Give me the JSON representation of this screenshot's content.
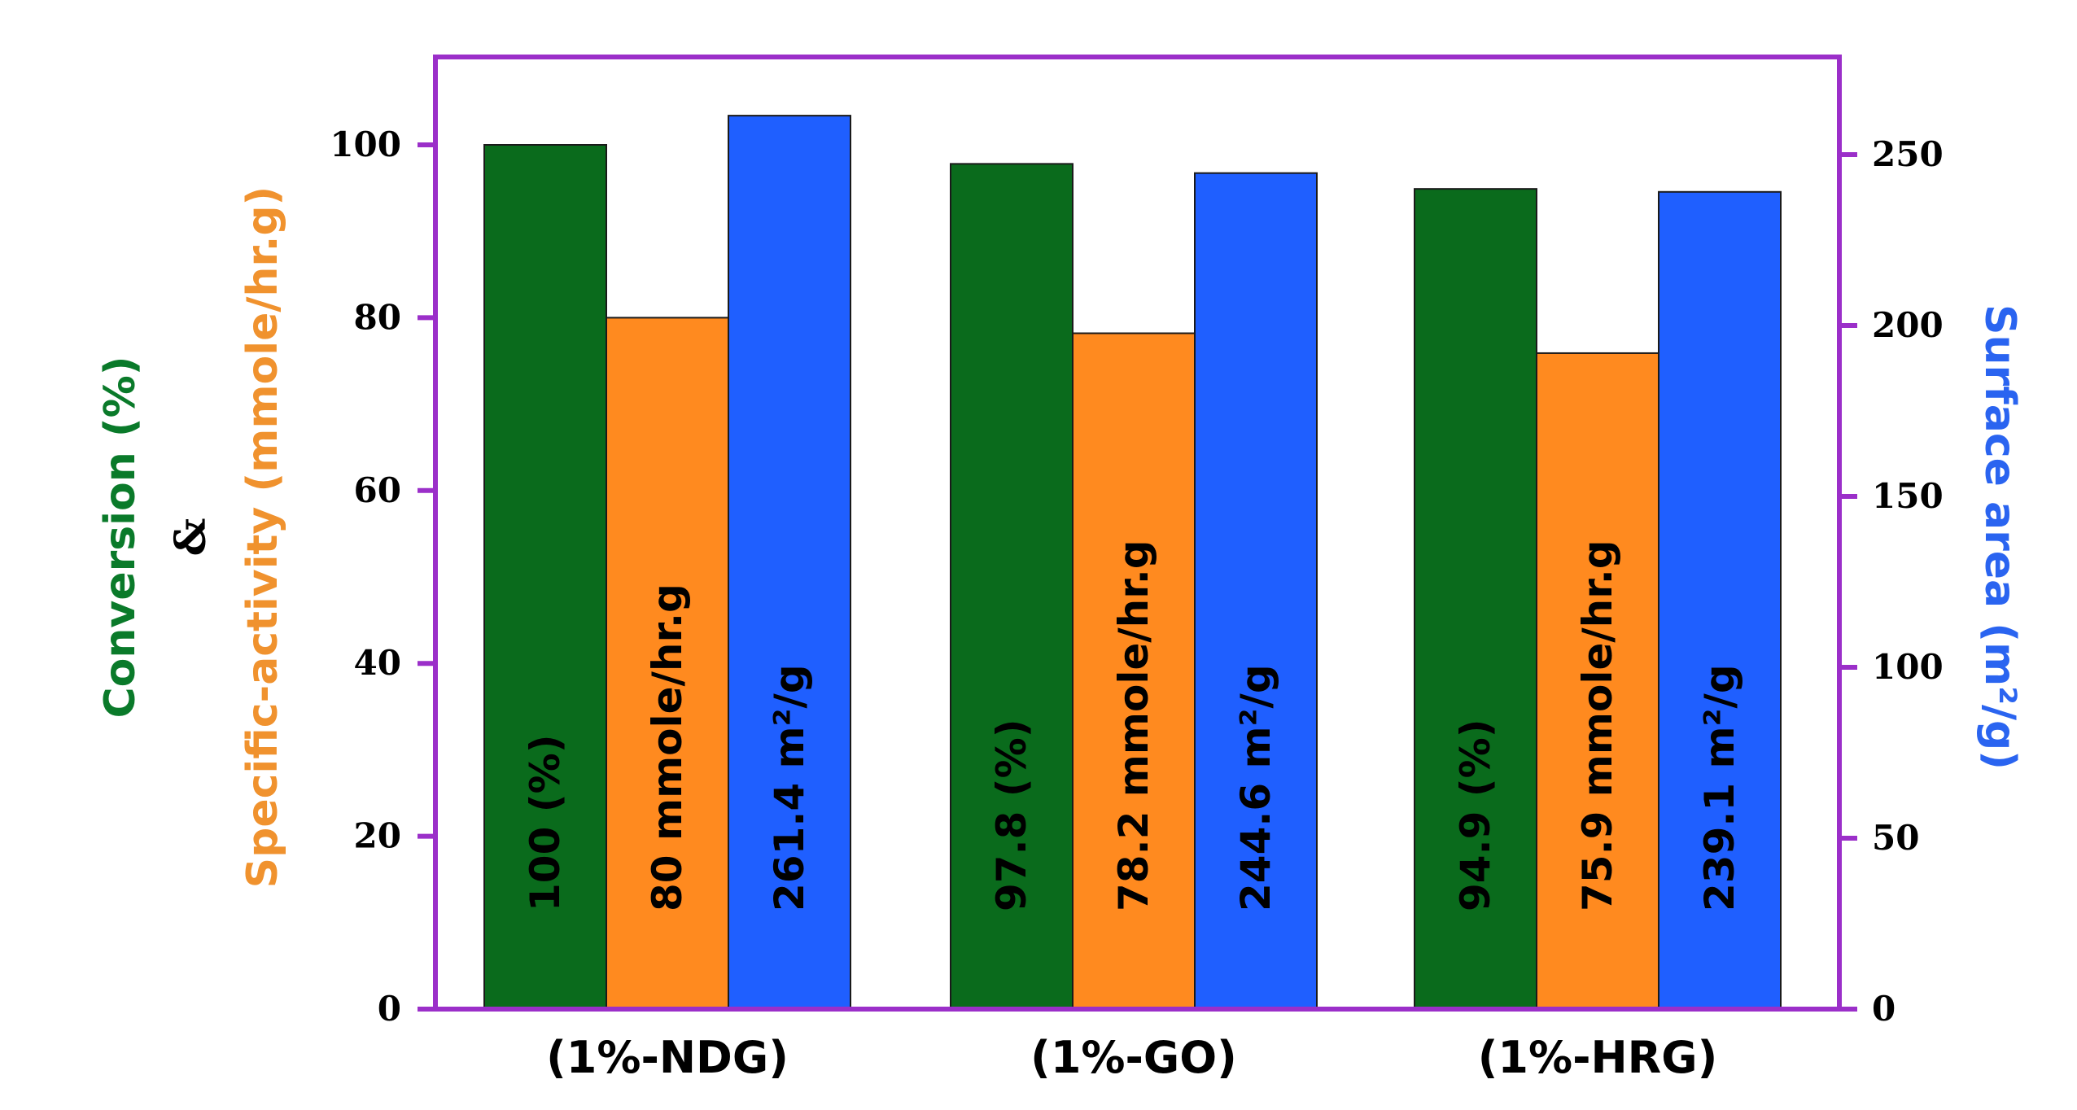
{
  "chart_data": {
    "type": "bar",
    "categories": [
      "(1%-NDG)",
      "(1%-GO)",
      "(1%-HRG)"
    ],
    "series": [
      {
        "key": "conversion",
        "axis": "left",
        "values": [
          100,
          97.8,
          94.9
        ],
        "color": "#0a6b1c",
        "labels": [
          "100 (%)",
          "97.8 (%)",
          "94.9 (%)"
        ]
      },
      {
        "key": "activity",
        "axis": "left",
        "values": [
          80,
          78.2,
          75.9
        ],
        "color": "#ff8a1f",
        "labels": [
          "80 mmole/hr.g",
          "78.2 mmole/hr.g",
          "75.9 mmole/hr.g"
        ]
      },
      {
        "key": "surface",
        "axis": "right",
        "values": [
          261.4,
          244.6,
          239.1
        ],
        "color": "#1f5fff",
        "labels": [
          "261.4 m²/g",
          "244.6 m²/g",
          "239.1 m²/g"
        ]
      }
    ],
    "y_left": {
      "ylim": [
        0,
        100
      ],
      "ticks": [
        "0",
        "20",
        "40",
        "60",
        "80",
        "100"
      ],
      "label_parts": [
        {
          "text": "Conversion (%)",
          "color": "#0a7a2a"
        },
        {
          "text": "&",
          "color": "#000000"
        },
        {
          "text": "Specific-activity (mmole/hr.g)",
          "color": "#f0922e"
        }
      ]
    },
    "y_right": {
      "ylim": [
        0,
        250
      ],
      "ticks": [
        "0",
        "50",
        "100",
        "150",
        "200",
        "250"
      ],
      "label": "Surface area (m²/g)",
      "color": "#2a64f0"
    },
    "frame_color": "#9b2fc9",
    "grid": false
  }
}
